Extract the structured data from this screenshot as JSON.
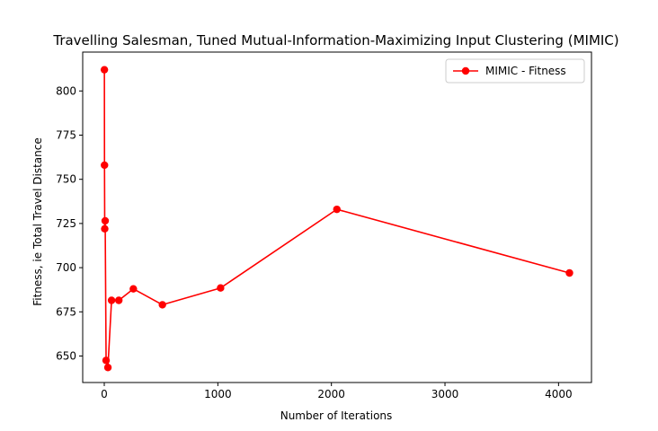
{
  "chart_data": {
    "type": "line",
    "title": "Travelling Salesman, Tuned Mutual-Information-Maximizing Input Clustering (MIMIC)",
    "xlabel": "Number of Iterations",
    "ylabel": "Fitness, ie Total Travel Distance",
    "xlim": [
      -190,
      4290
    ],
    "ylim": [
      635,
      822
    ],
    "xticks": [
      0,
      1000,
      2000,
      3000,
      4000
    ],
    "yticks": [
      650,
      675,
      700,
      725,
      750,
      775,
      800
    ],
    "grid": false,
    "legend_position": "top-right",
    "series": [
      {
        "name": "MIMIC - Fitness",
        "color": "#ff0000",
        "marker": "circle",
        "x": [
          1,
          2,
          4,
          8,
          16,
          32,
          64,
          128,
          256,
          512,
          1024,
          2048,
          4096
        ],
        "y": [
          812,
          758,
          722,
          726.5,
          647.5,
          643.5,
          681.5,
          681.5,
          688,
          679,
          688.5,
          733,
          697
        ]
      }
    ]
  }
}
